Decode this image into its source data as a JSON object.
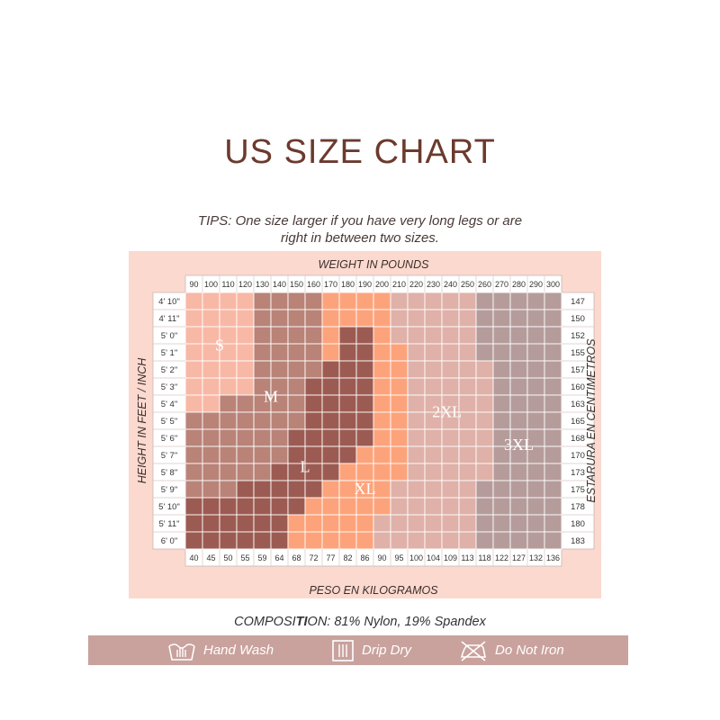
{
  "title": "US SIZE CHART",
  "tips": {
    "line1": "TIPS: One size larger if you have very long legs or are",
    "line2": "right in between two sizes."
  },
  "chart_data": {
    "type": "heatmap",
    "title": "WEIGHT IN POUNDS",
    "xlabel_top": "WEIGHT IN POUNDS",
    "xlabel_bottom": "PESO EN KILOGRAMOS",
    "ylabel_left": "HEIGHT IN FEET / INCH",
    "ylabel_right": "ESTARURA EN CENTIMETROS",
    "weight_lbs": [
      "90",
      "100",
      "110",
      "120",
      "130",
      "140",
      "150",
      "160",
      "170",
      "180",
      "190",
      "200",
      "210",
      "220",
      "230",
      "240",
      "250",
      "260",
      "270",
      "280",
      "290",
      "300"
    ],
    "weight_kg": [
      "40",
      "45",
      "50",
      "55",
      "59",
      "64",
      "68",
      "72",
      "77",
      "82",
      "86",
      "90",
      "95",
      "100",
      "104",
      "109",
      "113",
      "118",
      "122",
      "127",
      "132",
      "136"
    ],
    "height_ft": [
      "4' 10\"",
      "4' 11\"",
      "5' 0\"",
      "5' 1\"",
      "5' 2\"",
      "5' 3\"",
      "5' 4\"",
      "5' 5\"",
      "5' 6\"",
      "5' 7\"",
      "5' 8\"",
      "5' 9\"",
      "5' 10\"",
      "5' 11\"",
      "6' 0\""
    ],
    "height_cm": [
      "147",
      "150",
      "152",
      "155",
      "157",
      "160",
      "163",
      "165",
      "168",
      "170",
      "173",
      "175",
      "178",
      "180",
      "183"
    ],
    "sizes": [
      "S",
      "M",
      "L",
      "XL",
      "2XL",
      "3XL"
    ],
    "size_colors": {
      "S": "#f8b8a6",
      "M": "#b98378",
      "L": "#9c5b52",
      "XL": "#fda37b",
      "2XL": "#dfb1a8",
      "3XL": "#b59c9b"
    },
    "grid": [
      [
        "S",
        "S",
        "S",
        "S",
        "M",
        "M",
        "M",
        "M",
        "XL",
        "XL",
        "XL",
        "XL",
        "2XL",
        "2XL",
        "2XL",
        "2XL",
        "2XL",
        "3XL",
        "3XL",
        "3XL",
        "3XL",
        "3XL"
      ],
      [
        "S",
        "S",
        "S",
        "S",
        "M",
        "M",
        "M",
        "M",
        "XL",
        "XL",
        "XL",
        "XL",
        "2XL",
        "2XL",
        "2XL",
        "2XL",
        "2XL",
        "3XL",
        "3XL",
        "3XL",
        "3XL",
        "3XL"
      ],
      [
        "S",
        "S",
        "S",
        "S",
        "M",
        "M",
        "M",
        "M",
        "XL",
        "L",
        "L",
        "XL",
        "2XL",
        "2XL",
        "2XL",
        "2XL",
        "2XL",
        "3XL",
        "3XL",
        "3XL",
        "3XL",
        "3XL"
      ],
      [
        "S",
        "S",
        "S",
        "S",
        "M",
        "M",
        "M",
        "M",
        "XL",
        "L",
        "L",
        "XL",
        "XL",
        "2XL",
        "2XL",
        "2XL",
        "2XL",
        "3XL",
        "3XL",
        "3XL",
        "3XL",
        "3XL"
      ],
      [
        "S",
        "S",
        "S",
        "S",
        "M",
        "M",
        "M",
        "M",
        "L",
        "L",
        "L",
        "XL",
        "XL",
        "2XL",
        "2XL",
        "2XL",
        "2XL",
        "2XL",
        "3XL",
        "3XL",
        "3XL",
        "3XL"
      ],
      [
        "S",
        "S",
        "S",
        "S",
        "M",
        "M",
        "M",
        "L",
        "L",
        "L",
        "L",
        "XL",
        "XL",
        "2XL",
        "2XL",
        "2XL",
        "2XL",
        "2XL",
        "3XL",
        "3XL",
        "3XL",
        "3XL"
      ],
      [
        "S",
        "S",
        "M",
        "M",
        "M",
        "M",
        "M",
        "L",
        "L",
        "L",
        "L",
        "XL",
        "XL",
        "2XL",
        "2XL",
        "2XL",
        "2XL",
        "2XL",
        "3XL",
        "3XL",
        "3XL",
        "3XL"
      ],
      [
        "M",
        "M",
        "M",
        "M",
        "M",
        "M",
        "M",
        "L",
        "L",
        "L",
        "L",
        "XL",
        "XL",
        "2XL",
        "2XL",
        "2XL",
        "2XL",
        "2XL",
        "3XL",
        "3XL",
        "3XL",
        "3XL"
      ],
      [
        "M",
        "M",
        "M",
        "M",
        "M",
        "M",
        "L",
        "L",
        "L",
        "L",
        "L",
        "XL",
        "XL",
        "2XL",
        "2XL",
        "2XL",
        "2XL",
        "2XL",
        "3XL",
        "3XL",
        "3XL",
        "3XL"
      ],
      [
        "M",
        "M",
        "M",
        "M",
        "M",
        "M",
        "L",
        "L",
        "L",
        "L",
        "XL",
        "XL",
        "XL",
        "2XL",
        "2XL",
        "2XL",
        "2XL",
        "2XL",
        "3XL",
        "3XL",
        "3XL",
        "3XL"
      ],
      [
        "M",
        "M",
        "M",
        "M",
        "M",
        "L",
        "L",
        "L",
        "L",
        "XL",
        "XL",
        "XL",
        "XL",
        "2XL",
        "2XL",
        "2XL",
        "2XL",
        "2XL",
        "3XL",
        "3XL",
        "3XL",
        "3XL"
      ],
      [
        "M",
        "M",
        "M",
        "L",
        "L",
        "L",
        "L",
        "L",
        "XL",
        "XL",
        "XL",
        "XL",
        "2XL",
        "2XL",
        "2XL",
        "2XL",
        "2XL",
        "3XL",
        "3XL",
        "3XL",
        "3XL",
        "3XL"
      ],
      [
        "L",
        "L",
        "L",
        "L",
        "L",
        "L",
        "L",
        "XL",
        "XL",
        "XL",
        "XL",
        "XL",
        "2XL",
        "2XL",
        "2XL",
        "2XL",
        "2XL",
        "3XL",
        "3XL",
        "3XL",
        "3XL",
        "3XL"
      ],
      [
        "L",
        "L",
        "L",
        "L",
        "L",
        "L",
        "XL",
        "XL",
        "XL",
        "XL",
        "XL",
        "2XL",
        "2XL",
        "2XL",
        "2XL",
        "2XL",
        "2XL",
        "3XL",
        "3XL",
        "3XL",
        "3XL",
        "3XL"
      ],
      [
        "L",
        "L",
        "L",
        "L",
        "L",
        "L",
        "XL",
        "XL",
        "XL",
        "XL",
        "XL",
        "2XL",
        "2XL",
        "2XL",
        "2XL",
        "2XL",
        "2XL",
        "3XL",
        "3XL",
        "3XL",
        "3XL",
        "3XL"
      ]
    ]
  },
  "composition": {
    "prefix": "COMPOSI",
    "highlight": "TI",
    "suffix": "ON: 81% Nylon, 19% Spandex"
  },
  "care": {
    "hand_wash": "Hand Wash",
    "drip_dry": "Drip Dry",
    "do_not_iron": "Do Not Iron",
    "icons": [
      "hand-wash-icon",
      "drip-dry-icon",
      "do-not-iron-icon"
    ]
  }
}
